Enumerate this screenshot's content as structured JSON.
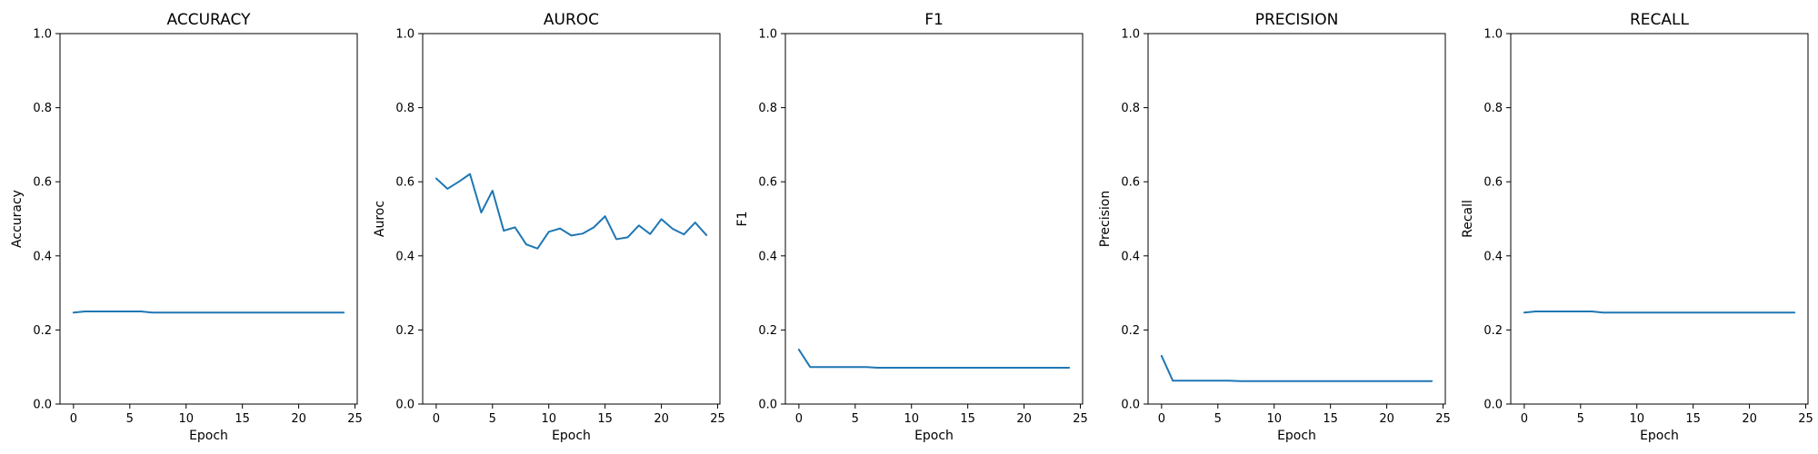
{
  "chart_data": [
    {
      "type": "line",
      "title": "ACCURACY",
      "xlabel": "Epoch",
      "ylabel": "Accuracy",
      "xlim": [
        -1.2,
        25.2
      ],
      "ylim": [
        0,
        1
      ],
      "xticks": [
        0,
        5,
        10,
        15,
        20,
        25
      ],
      "yticks": [
        0.0,
        0.2,
        0.4,
        0.6,
        0.8,
        1.0
      ],
      "grid": false,
      "x": [
        0,
        1,
        2,
        3,
        4,
        5,
        6,
        7,
        8,
        9,
        10,
        11,
        12,
        13,
        14,
        15,
        16,
        17,
        18,
        19,
        20,
        21,
        22,
        23,
        24
      ],
      "series": [
        {
          "color": "#1f77b4",
          "values": [
            0.247,
            0.25,
            0.25,
            0.25,
            0.25,
            0.25,
            0.25,
            0.247,
            0.247,
            0.247,
            0.247,
            0.247,
            0.247,
            0.247,
            0.247,
            0.247,
            0.247,
            0.247,
            0.247,
            0.247,
            0.247,
            0.247,
            0.247,
            0.247,
            0.247
          ]
        }
      ]
    },
    {
      "type": "line",
      "title": "AUROC",
      "xlabel": "Epoch",
      "ylabel": "Auroc",
      "xlim": [
        -1.2,
        25.2
      ],
      "ylim": [
        0,
        1
      ],
      "xticks": [
        0,
        5,
        10,
        15,
        20,
        25
      ],
      "yticks": [
        0.0,
        0.2,
        0.4,
        0.6,
        0.8,
        1.0
      ],
      "grid": false,
      "x": [
        0,
        1,
        2,
        3,
        4,
        5,
        6,
        7,
        8,
        9,
        10,
        11,
        12,
        13,
        14,
        15,
        16,
        17,
        18,
        19,
        20,
        21,
        22,
        23,
        24
      ],
      "series": [
        {
          "color": "#1f77b4",
          "values": [
            0.609,
            0.581,
            0.6,
            0.621,
            0.517,
            0.576,
            0.468,
            0.477,
            0.431,
            0.42,
            0.465,
            0.474,
            0.455,
            0.46,
            0.477,
            0.507,
            0.445,
            0.45,
            0.482,
            0.459,
            0.499,
            0.473,
            0.458,
            0.49,
            0.456
          ]
        }
      ]
    },
    {
      "type": "line",
      "title": "F1",
      "xlabel": "Epoch",
      "ylabel": "F1",
      "xlim": [
        -1.2,
        25.2
      ],
      "ylim": [
        0,
        1
      ],
      "xticks": [
        0,
        5,
        10,
        15,
        20,
        25
      ],
      "yticks": [
        0.0,
        0.2,
        0.4,
        0.6,
        0.8,
        1.0
      ],
      "grid": false,
      "x": [
        0,
        1,
        2,
        3,
        4,
        5,
        6,
        7,
        8,
        9,
        10,
        11,
        12,
        13,
        14,
        15,
        16,
        17,
        18,
        19,
        20,
        21,
        22,
        23,
        24
      ],
      "series": [
        {
          "color": "#1f77b4",
          "values": [
            0.147,
            0.1,
            0.1,
            0.1,
            0.1,
            0.1,
            0.1,
            0.098,
            0.098,
            0.098,
            0.098,
            0.098,
            0.098,
            0.098,
            0.098,
            0.098,
            0.098,
            0.098,
            0.098,
            0.098,
            0.098,
            0.098,
            0.098,
            0.098,
            0.098
          ]
        }
      ]
    },
    {
      "type": "line",
      "title": "PRECISION",
      "xlabel": "Epoch",
      "ylabel": "Precision",
      "xlim": [
        -1.2,
        25.2
      ],
      "ylim": [
        0,
        1
      ],
      "xticks": [
        0,
        5,
        10,
        15,
        20,
        25
      ],
      "yticks": [
        0.0,
        0.2,
        0.4,
        0.6,
        0.8,
        1.0
      ],
      "grid": false,
      "x": [
        0,
        1,
        2,
        3,
        4,
        5,
        6,
        7,
        8,
        9,
        10,
        11,
        12,
        13,
        14,
        15,
        16,
        17,
        18,
        19,
        20,
        21,
        22,
        23,
        24
      ],
      "series": [
        {
          "color": "#1f77b4",
          "values": [
            0.13,
            0.063,
            0.063,
            0.063,
            0.063,
            0.063,
            0.063,
            0.062,
            0.062,
            0.062,
            0.062,
            0.062,
            0.062,
            0.062,
            0.062,
            0.062,
            0.062,
            0.062,
            0.062,
            0.062,
            0.062,
            0.062,
            0.062,
            0.062,
            0.062
          ]
        }
      ]
    },
    {
      "type": "line",
      "title": "RECALL",
      "xlabel": "Epoch",
      "ylabel": "Recall",
      "xlim": [
        -1.2,
        25.2
      ],
      "ylim": [
        0,
        1
      ],
      "xticks": [
        0,
        5,
        10,
        15,
        20,
        25
      ],
      "yticks": [
        0.0,
        0.2,
        0.4,
        0.6,
        0.8,
        1.0
      ],
      "grid": false,
      "x": [
        0,
        1,
        2,
        3,
        4,
        5,
        6,
        7,
        8,
        9,
        10,
        11,
        12,
        13,
        14,
        15,
        16,
        17,
        18,
        19,
        20,
        21,
        22,
        23,
        24
      ],
      "series": [
        {
          "color": "#1f77b4",
          "values": [
            0.247,
            0.25,
            0.25,
            0.25,
            0.25,
            0.25,
            0.25,
            0.247,
            0.247,
            0.247,
            0.247,
            0.247,
            0.247,
            0.247,
            0.247,
            0.247,
            0.247,
            0.247,
            0.247,
            0.247,
            0.247,
            0.247,
            0.247,
            0.247,
            0.247
          ]
        }
      ]
    }
  ]
}
